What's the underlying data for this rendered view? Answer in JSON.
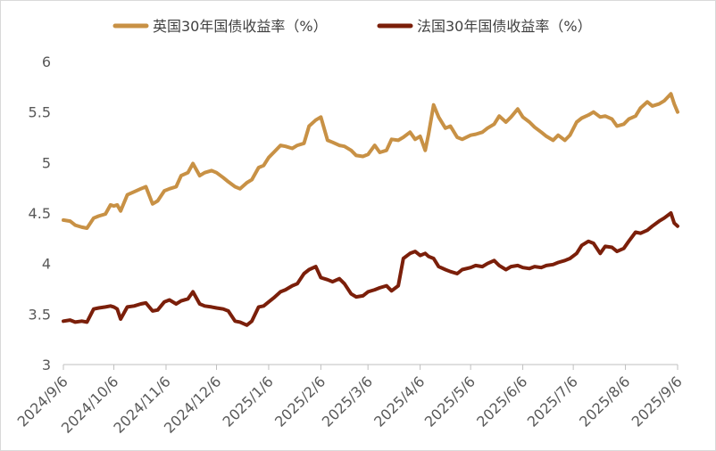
{
  "chart_data": {
    "type": "line",
    "x_ticks": [
      "2024/9/6",
      "2024/10/6",
      "2024/11/6",
      "2024/12/6",
      "2025/1/6",
      "2025/2/6",
      "2025/3/6",
      "2025/4/6",
      "2025/5/6",
      "2025/6/6",
      "2025/7/6",
      "2025/8/6",
      "2025/9/6"
    ],
    "y_ticks": [
      "3",
      "3.5",
      "4",
      "4.5",
      "5",
      "5.5",
      "6"
    ],
    "ylim": [
      3,
      6
    ],
    "grid": false,
    "legend_position": "top",
    "series": [
      {
        "name": "英国30年国债收益率（%）",
        "color": "#c89145",
        "points": [
          [
            "2024/9/6",
            4.43
          ],
          [
            "2024/9/10",
            4.42
          ],
          [
            "2024/9/13",
            4.38
          ],
          [
            "2024/9/17",
            4.36
          ],
          [
            "2024/9/20",
            4.35
          ],
          [
            "2024/9/24",
            4.45
          ],
          [
            "2024/9/27",
            4.47
          ],
          [
            "2024/10/1",
            4.49
          ],
          [
            "2024/10/4",
            4.58
          ],
          [
            "2024/10/6",
            4.57
          ],
          [
            "2024/10/8",
            4.58
          ],
          [
            "2024/10/10",
            4.52
          ],
          [
            "2024/10/14",
            4.68
          ],
          [
            "2024/10/18",
            4.71
          ],
          [
            "2024/10/22",
            4.74
          ],
          [
            "2024/10/25",
            4.76
          ],
          [
            "2024/10/29",
            4.59
          ],
          [
            "2024/11/1",
            4.62
          ],
          [
            "2024/11/5",
            4.72
          ],
          [
            "2024/11/8",
            4.74
          ],
          [
            "2024/11/12",
            4.76
          ],
          [
            "2024/11/15",
            4.87
          ],
          [
            "2024/11/19",
            4.9
          ],
          [
            "2024/11/22",
            4.99
          ],
          [
            "2024/11/26",
            4.87
          ],
          [
            "2024/11/29",
            4.9
          ],
          [
            "2024/12/3",
            4.92
          ],
          [
            "2024/12/6",
            4.9
          ],
          [
            "2024/12/10",
            4.85
          ],
          [
            "2024/12/13",
            4.81
          ],
          [
            "2024/12/17",
            4.76
          ],
          [
            "2024/12/20",
            4.74
          ],
          [
            "2024/12/24",
            4.8
          ],
          [
            "2024/12/27",
            4.83
          ],
          [
            "2024/12/31",
            4.95
          ],
          [
            "2025/1/3",
            4.97
          ],
          [
            "2025/1/6",
            5.05
          ],
          [
            "2025/1/9",
            5.1
          ],
          [
            "2025/1/13",
            5.17
          ],
          [
            "2025/1/16",
            5.16
          ],
          [
            "2025/1/20",
            5.14
          ],
          [
            "2025/1/23",
            5.17
          ],
          [
            "2025/1/27",
            5.19
          ],
          [
            "2025/1/30",
            5.36
          ],
          [
            "2025/2/3",
            5.42
          ],
          [
            "2025/2/6",
            5.45
          ],
          [
            "2025/2/10",
            5.22
          ],
          [
            "2025/2/13",
            5.2
          ],
          [
            "2025/2/17",
            5.17
          ],
          [
            "2025/2/20",
            5.16
          ],
          [
            "2025/2/24",
            5.12
          ],
          [
            "2025/2/27",
            5.07
          ],
          [
            "2025/3/3",
            5.06
          ],
          [
            "2025/3/6",
            5.08
          ],
          [
            "2025/3/10",
            5.17
          ],
          [
            "2025/3/13",
            5.1
          ],
          [
            "2025/3/17",
            5.12
          ],
          [
            "2025/3/20",
            5.23
          ],
          [
            "2025/3/24",
            5.22
          ],
          [
            "2025/3/27",
            5.25
          ],
          [
            "2025/3/31",
            5.3
          ],
          [
            "2025/4/3",
            5.23
          ],
          [
            "2025/4/6",
            5.26
          ],
          [
            "2025/4/9",
            5.12
          ],
          [
            "2025/4/11",
            5.28
          ],
          [
            "2025/4/14",
            5.57
          ],
          [
            "2025/4/17",
            5.45
          ],
          [
            "2025/4/21",
            5.34
          ],
          [
            "2025/4/24",
            5.36
          ],
          [
            "2025/4/28",
            5.25
          ],
          [
            "2025/5/1",
            5.23
          ],
          [
            "2025/5/6",
            5.27
          ],
          [
            "2025/5/9",
            5.28
          ],
          [
            "2025/5/13",
            5.3
          ],
          [
            "2025/5/16",
            5.34
          ],
          [
            "2025/5/20",
            5.38
          ],
          [
            "2025/5/23",
            5.46
          ],
          [
            "2025/5/27",
            5.4
          ],
          [
            "2025/5/30",
            5.45
          ],
          [
            "2025/6/3",
            5.53
          ],
          [
            "2025/6/6",
            5.45
          ],
          [
            "2025/6/10",
            5.4
          ],
          [
            "2025/6/13",
            5.35
          ],
          [
            "2025/6/17",
            5.3
          ],
          [
            "2025/6/20",
            5.26
          ],
          [
            "2025/6/24",
            5.22
          ],
          [
            "2025/6/27",
            5.27
          ],
          [
            "2025/7/1",
            5.22
          ],
          [
            "2025/7/4",
            5.27
          ],
          [
            "2025/7/8",
            5.4
          ],
          [
            "2025/7/11",
            5.44
          ],
          [
            "2025/7/15",
            5.47
          ],
          [
            "2025/7/18",
            5.5
          ],
          [
            "2025/7/22",
            5.45
          ],
          [
            "2025/7/25",
            5.46
          ],
          [
            "2025/7/29",
            5.43
          ],
          [
            "2025/8/1",
            5.36
          ],
          [
            "2025/8/5",
            5.38
          ],
          [
            "2025/8/8",
            5.43
          ],
          [
            "2025/8/12",
            5.46
          ],
          [
            "2025/8/15",
            5.54
          ],
          [
            "2025/8/19",
            5.6
          ],
          [
            "2025/8/22",
            5.56
          ],
          [
            "2025/8/26",
            5.58
          ],
          [
            "2025/8/29",
            5.61
          ],
          [
            "2025/9/2",
            5.68
          ],
          [
            "2025/9/4",
            5.58
          ],
          [
            "2025/9/6",
            5.5
          ]
        ]
      },
      {
        "name": "法国30年国债收益率（%）",
        "color": "#7b1f0a",
        "points": [
          [
            "2024/9/6",
            3.43
          ],
          [
            "2024/9/10",
            3.44
          ],
          [
            "2024/9/13",
            3.42
          ],
          [
            "2024/9/17",
            3.43
          ],
          [
            "2024/9/20",
            3.42
          ],
          [
            "2024/9/24",
            3.55
          ],
          [
            "2024/9/27",
            3.56
          ],
          [
            "2024/10/1",
            3.57
          ],
          [
            "2024/10/4",
            3.58
          ],
          [
            "2024/10/6",
            3.57
          ],
          [
            "2024/10/8",
            3.55
          ],
          [
            "2024/10/10",
            3.45
          ],
          [
            "2024/10/14",
            3.57
          ],
          [
            "2024/10/18",
            3.58
          ],
          [
            "2024/10/22",
            3.6
          ],
          [
            "2024/10/25",
            3.61
          ],
          [
            "2024/10/29",
            3.53
          ],
          [
            "2024/11/1",
            3.54
          ],
          [
            "2024/11/5",
            3.62
          ],
          [
            "2024/11/8",
            3.64
          ],
          [
            "2024/11/12",
            3.6
          ],
          [
            "2024/11/15",
            3.63
          ],
          [
            "2024/11/19",
            3.65
          ],
          [
            "2024/11/22",
            3.72
          ],
          [
            "2024/11/26",
            3.6
          ],
          [
            "2024/11/29",
            3.58
          ],
          [
            "2024/12/3",
            3.57
          ],
          [
            "2024/12/6",
            3.56
          ],
          [
            "2024/12/10",
            3.55
          ],
          [
            "2024/12/13",
            3.53
          ],
          [
            "2024/12/17",
            3.43
          ],
          [
            "2024/12/20",
            3.42
          ],
          [
            "2024/12/24",
            3.39
          ],
          [
            "2024/12/27",
            3.43
          ],
          [
            "2024/12/31",
            3.57
          ],
          [
            "2025/1/3",
            3.58
          ],
          [
            "2025/1/6",
            3.62
          ],
          [
            "2025/1/9",
            3.66
          ],
          [
            "2025/1/13",
            3.72
          ],
          [
            "2025/1/16",
            3.74
          ],
          [
            "2025/1/20",
            3.78
          ],
          [
            "2025/1/23",
            3.8
          ],
          [
            "2025/1/27",
            3.9
          ],
          [
            "2025/1/30",
            3.94
          ],
          [
            "2025/2/3",
            3.97
          ],
          [
            "2025/2/6",
            3.86
          ],
          [
            "2025/2/10",
            3.84
          ],
          [
            "2025/2/13",
            3.82
          ],
          [
            "2025/2/17",
            3.85
          ],
          [
            "2025/2/20",
            3.8
          ],
          [
            "2025/2/24",
            3.7
          ],
          [
            "2025/2/27",
            3.67
          ],
          [
            "2025/3/3",
            3.68
          ],
          [
            "2025/3/6",
            3.72
          ],
          [
            "2025/3/10",
            3.74
          ],
          [
            "2025/3/13",
            3.76
          ],
          [
            "2025/3/17",
            3.78
          ],
          [
            "2025/3/20",
            3.73
          ],
          [
            "2025/3/24",
            3.78
          ],
          [
            "2025/3/27",
            4.05
          ],
          [
            "2025/3/31",
            4.1
          ],
          [
            "2025/4/3",
            4.12
          ],
          [
            "2025/4/6",
            4.08
          ],
          [
            "2025/4/9",
            4.1
          ],
          [
            "2025/4/11",
            4.07
          ],
          [
            "2025/4/14",
            4.05
          ],
          [
            "2025/4/17",
            3.97
          ],
          [
            "2025/4/21",
            3.94
          ],
          [
            "2025/4/24",
            3.92
          ],
          [
            "2025/4/28",
            3.9
          ],
          [
            "2025/5/1",
            3.94
          ],
          [
            "2025/5/6",
            3.96
          ],
          [
            "2025/5/9",
            3.98
          ],
          [
            "2025/5/13",
            3.97
          ],
          [
            "2025/5/16",
            4.0
          ],
          [
            "2025/5/20",
            4.03
          ],
          [
            "2025/5/23",
            3.98
          ],
          [
            "2025/5/27",
            3.94
          ],
          [
            "2025/5/30",
            3.97
          ],
          [
            "2025/6/3",
            3.98
          ],
          [
            "2025/6/6",
            3.96
          ],
          [
            "2025/6/10",
            3.95
          ],
          [
            "2025/6/13",
            3.97
          ],
          [
            "2025/6/17",
            3.96
          ],
          [
            "2025/6/20",
            3.98
          ],
          [
            "2025/6/24",
            3.99
          ],
          [
            "2025/6/27",
            4.01
          ],
          [
            "2025/7/1",
            4.03
          ],
          [
            "2025/7/4",
            4.05
          ],
          [
            "2025/7/8",
            4.1
          ],
          [
            "2025/7/11",
            4.18
          ],
          [
            "2025/7/15",
            4.22
          ],
          [
            "2025/7/18",
            4.2
          ],
          [
            "2025/7/22",
            4.1
          ],
          [
            "2025/7/25",
            4.17
          ],
          [
            "2025/7/29",
            4.16
          ],
          [
            "2025/8/1",
            4.12
          ],
          [
            "2025/8/5",
            4.15
          ],
          [
            "2025/8/8",
            4.22
          ],
          [
            "2025/8/12",
            4.31
          ],
          [
            "2025/8/15",
            4.3
          ],
          [
            "2025/8/19",
            4.33
          ],
          [
            "2025/8/22",
            4.37
          ],
          [
            "2025/8/26",
            4.42
          ],
          [
            "2025/8/29",
            4.45
          ],
          [
            "2025/9/2",
            4.5
          ],
          [
            "2025/9/4",
            4.4
          ],
          [
            "2025/9/6",
            4.37
          ]
        ]
      }
    ]
  }
}
